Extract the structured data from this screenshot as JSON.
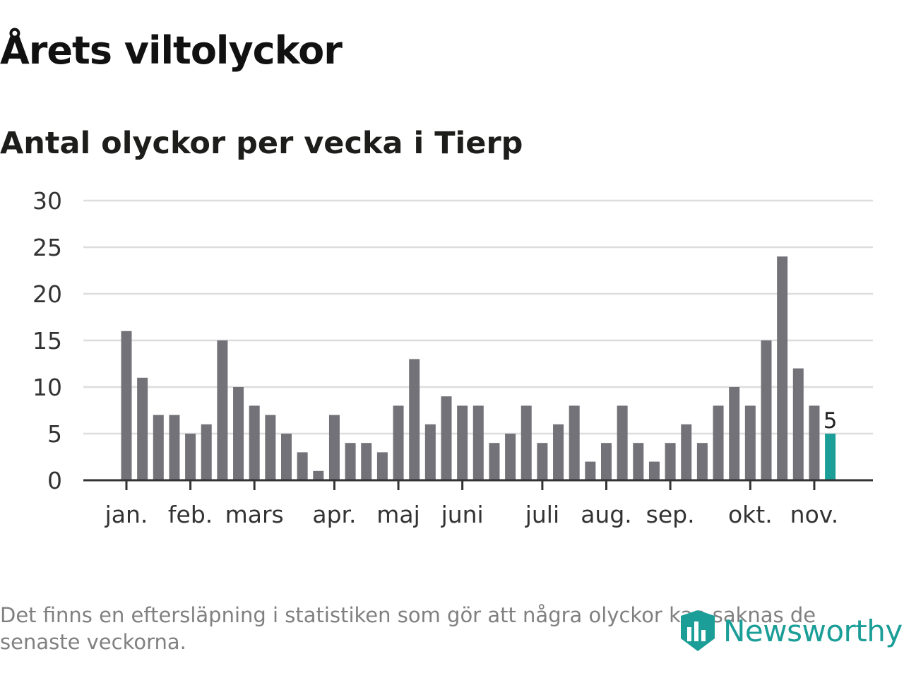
{
  "header": {
    "title": "Årets viltolyckor",
    "subtitle": "Antal olyckor per vecka i Tierp"
  },
  "chart_data": {
    "type": "bar",
    "title": "Årets viltolyckor",
    "subtitle": "Antal olyckor per vecka i Tierp",
    "xlabel": "",
    "ylabel": "",
    "ylim": [
      0,
      30
    ],
    "yticks": [
      0,
      5,
      10,
      15,
      20,
      25,
      30
    ],
    "grid": true,
    "values": [
      16,
      11,
      7,
      7,
      5,
      6,
      15,
      10,
      8,
      7,
      5,
      3,
      1,
      7,
      4,
      4,
      3,
      8,
      13,
      6,
      9,
      8,
      8,
      4,
      5,
      8,
      4,
      6,
      8,
      2,
      4,
      8,
      4,
      2,
      4,
      6,
      4,
      8,
      10,
      8,
      15,
      24,
      12,
      8,
      5
    ],
    "highlight_index": 44,
    "highlight_label": "5",
    "month_ticks": [
      {
        "label": "jan.",
        "week_index": 0
      },
      {
        "label": "feb.",
        "week_index": 4
      },
      {
        "label": "mars",
        "week_index": 8
      },
      {
        "label": "apr.",
        "week_index": 13
      },
      {
        "label": "maj",
        "week_index": 17
      },
      {
        "label": "juni",
        "week_index": 21
      },
      {
        "label": "juli",
        "week_index": 26
      },
      {
        "label": "aug.",
        "week_index": 30
      },
      {
        "label": "sep.",
        "week_index": 34
      },
      {
        "label": "okt.",
        "week_index": 39
      },
      {
        "label": "nov.",
        "week_index": 43
      }
    ]
  },
  "colors": {
    "bar": "#737278",
    "highlight": "#1a9e97",
    "grid": "#dddddd",
    "axis": "#333333",
    "tick_text": "#333333",
    "brand": "#1a9e97"
  },
  "footer": {
    "note": "Det finns en eftersläpning i statistiken som gör att några olyckor kan saknas de senaste veckorna.",
    "brand": "Newsworthy",
    "brand_icon": "newsworthy-logo-icon"
  }
}
